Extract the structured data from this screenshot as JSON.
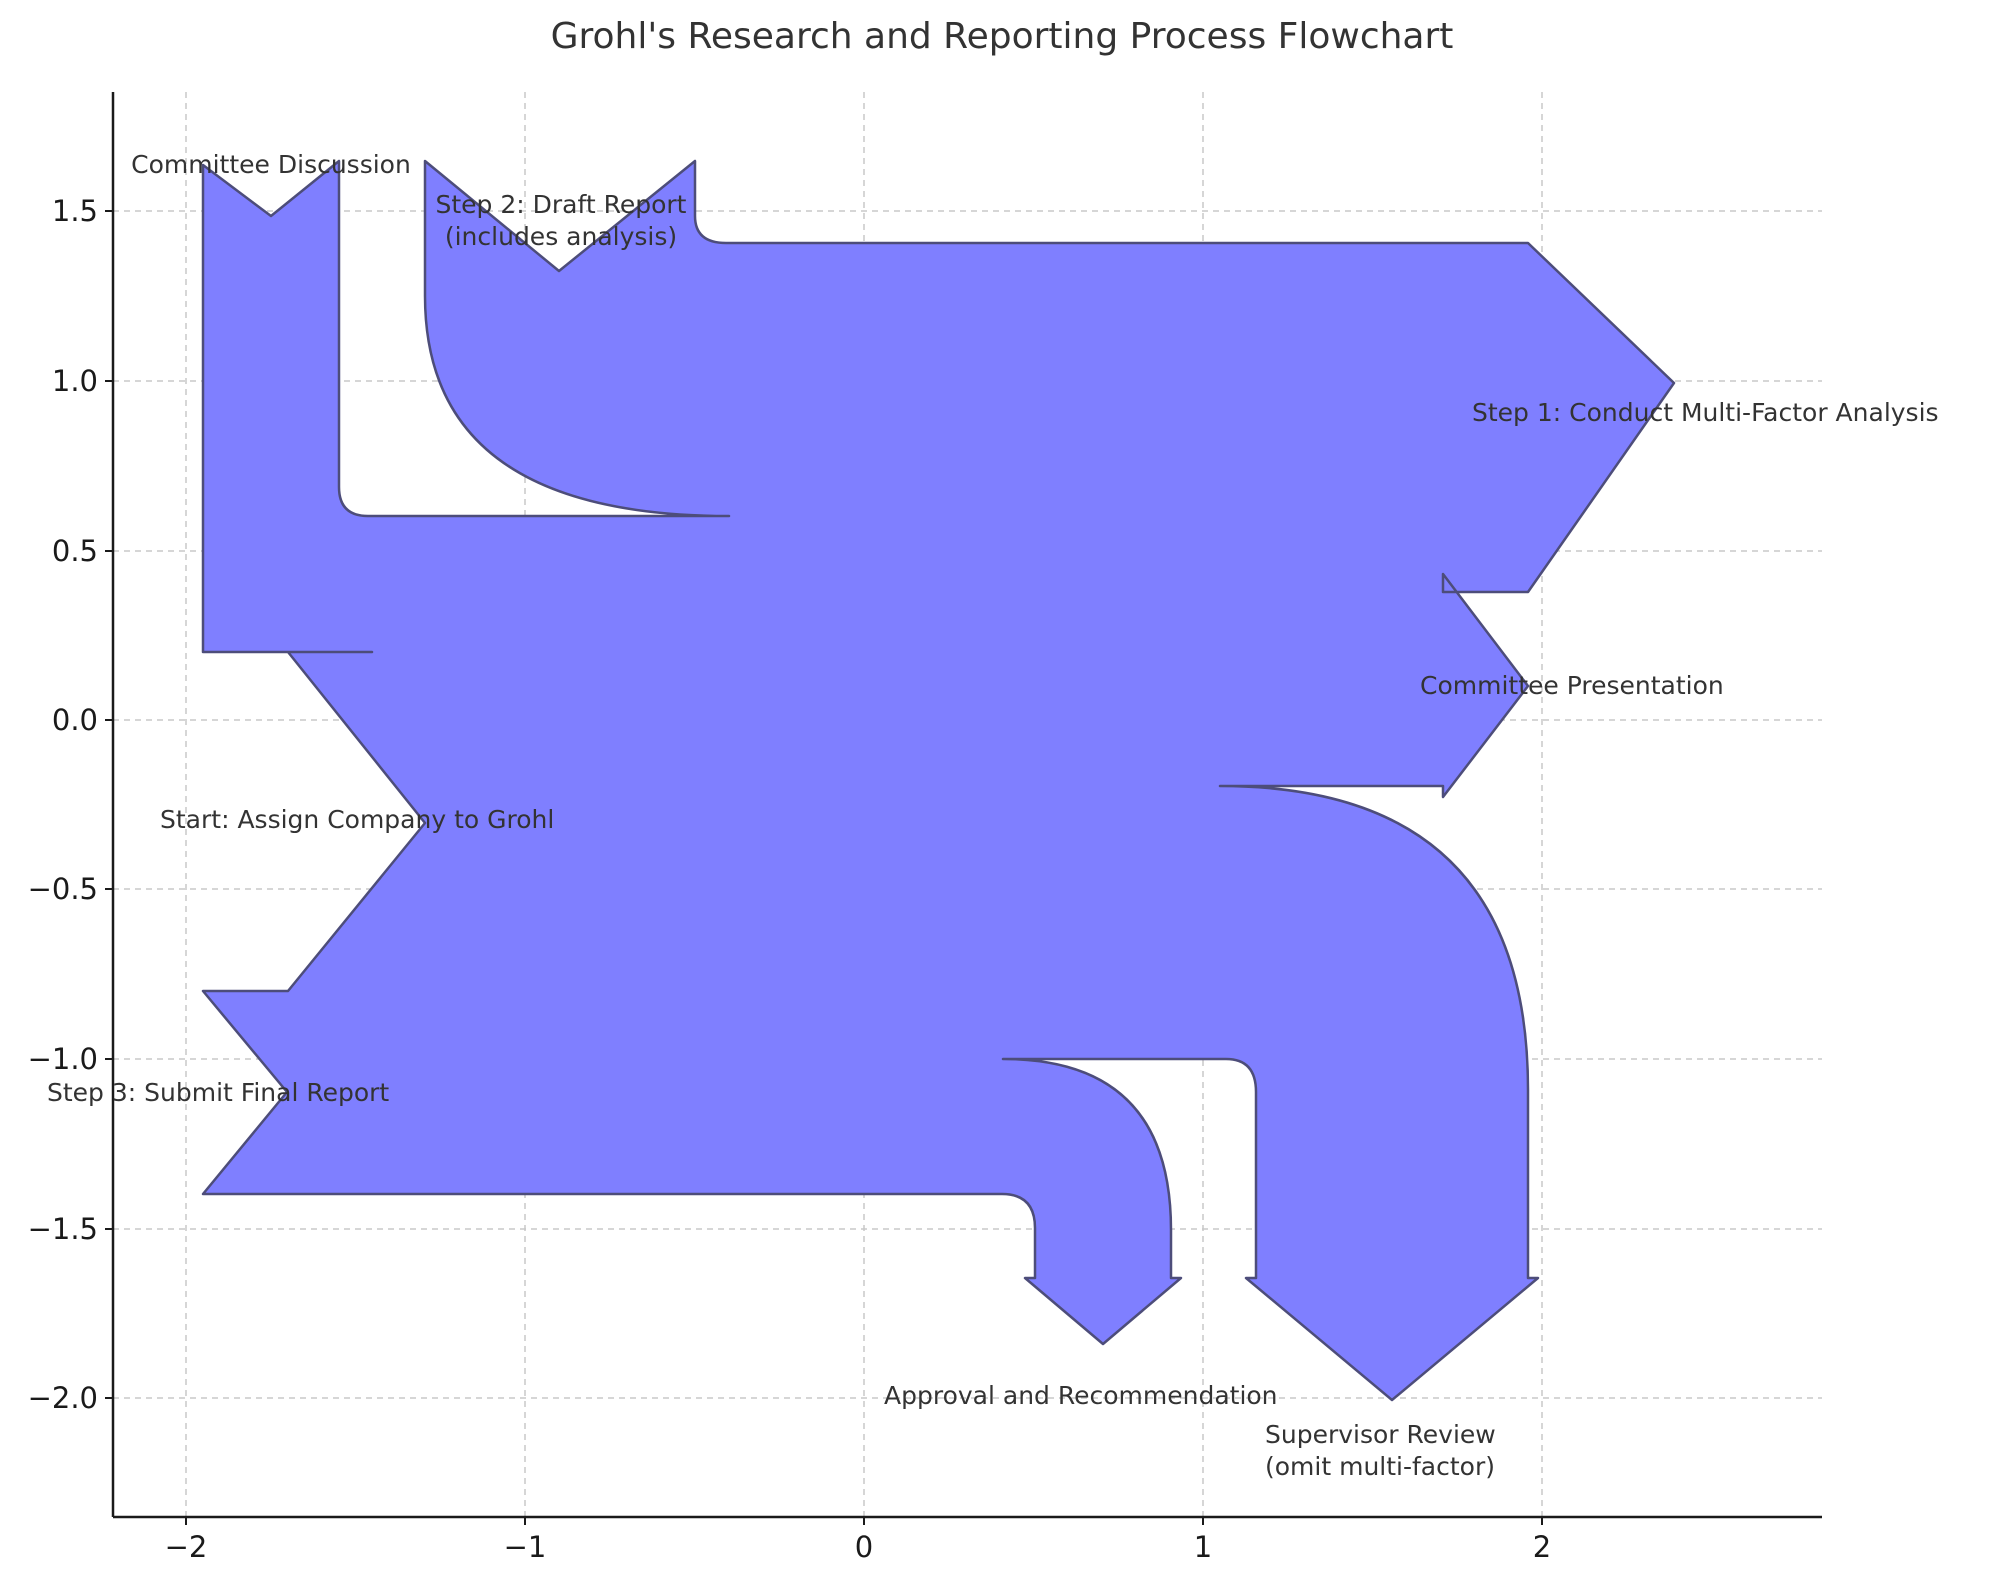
{
  "title": "Grohl's Research and Reporting Process Flowchart",
  "axes": {
    "x_ticks": [
      {
        "label": "−2"
      },
      {
        "label": "−1"
      },
      {
        "label": "0"
      },
      {
        "label": "1"
      },
      {
        "label": "2"
      }
    ],
    "y_ticks": [
      {
        "label": "1.5"
      },
      {
        "label": "1.0"
      },
      {
        "label": "0.5"
      },
      {
        "label": "0.0"
      },
      {
        "label": "−0.5"
      },
      {
        "label": "−1.0"
      },
      {
        "label": "−1.5"
      },
      {
        "label": "−2.0"
      }
    ]
  },
  "flow": {
    "fill_color": "#7f7fff",
    "edge_color": "#4d4d7a"
  },
  "labels": {
    "committee_discussion": "Committee Discussion",
    "draft_report_line1": "Step 2: Draft Report",
    "draft_report_line2": "(includes analysis)",
    "multi_factor": "Step 1: Conduct Multi-Factor Analysis",
    "committee_presentation": "Committee Presentation",
    "start": "Start: Assign Company to Grohl",
    "submit_final": "Step 3: Submit Final Report",
    "approval": "Approval and Recommendation",
    "supervisor_line1": "Supervisor Review",
    "supervisor_line2": "(omit multi-factor)"
  }
}
